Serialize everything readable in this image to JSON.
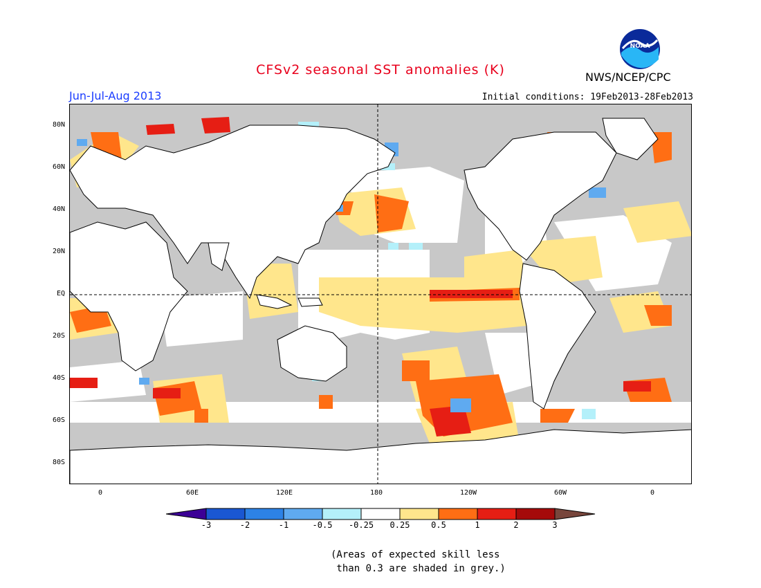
{
  "title": "CFSv2 seasonal SST anomalies (K)",
  "agency": "NWS/NCEP/CPC",
  "logo_text": "NOAA",
  "period": "Jun-Jul-Aug 2013",
  "initial_conditions": "Initial conditions: 19Feb2013-28Feb2013",
  "lat_labels": [
    "80N",
    "60N",
    "40N",
    "20N",
    "EQ",
    "20S",
    "40S",
    "60S",
    "80S"
  ],
  "lon_labels": [
    "0",
    "60E",
    "120E",
    "180",
    "120W",
    "60W",
    "0"
  ],
  "colorbar": {
    "labels": [
      "-3",
      "-2",
      "-1",
      "-0.5",
      "-0.25",
      "0.25",
      "0.5",
      "1",
      "2",
      "3"
    ],
    "colors": [
      "#3c0096",
      "#1a57d2",
      "#2d82e6",
      "#5faaf0",
      "#b4f0fa",
      "#ffffff",
      "#ffe68c",
      "#ff6e14",
      "#e61e14",
      "#a50a0a",
      "#78463c"
    ]
  },
  "note": "(Areas of expected skill less\n than 0.3 are shaded in grey.)",
  "map_fill_colors": {
    "land": "#ffffff",
    "ocean_low_skill": "#c8c8c8",
    "neutral": "#ffffff"
  }
}
